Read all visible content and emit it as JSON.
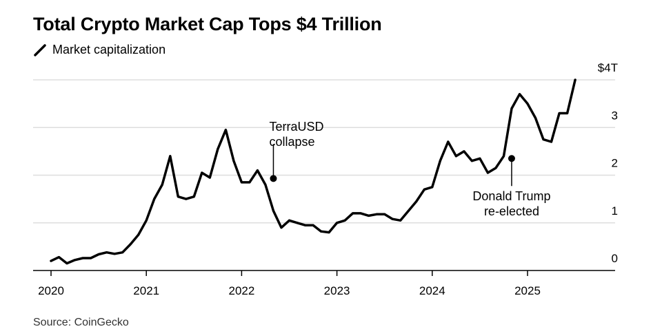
{
  "title": "Total Crypto Market Cap Tops $4 Trillion",
  "legend_label": "Market capitalization",
  "source": "Source: CoinGecko",
  "colors": {
    "line": "#000000",
    "grid": "#dddddd",
    "axis": "#000000"
  },
  "chart_data": {
    "type": "line",
    "title": "Total Crypto Market Cap Tops $4 Trillion",
    "xlabel": "",
    "ylabel": "",
    "y_unit": "trillion USD",
    "ylim": [
      0,
      4
    ],
    "y_ticks": [
      {
        "value": 4,
        "label": "$4T"
      },
      {
        "value": 3,
        "label": "3"
      },
      {
        "value": 2,
        "label": "2"
      },
      {
        "value": 1,
        "label": "1"
      },
      {
        "value": 0,
        "label": "0"
      }
    ],
    "x_ticks": [
      "2020",
      "2021",
      "2022",
      "2023",
      "2024",
      "2025"
    ],
    "grid": true,
    "series": [
      {
        "name": "Market capitalization",
        "x": [
          "2020-01",
          "2020-02",
          "2020-03",
          "2020-04",
          "2020-05",
          "2020-06",
          "2020-07",
          "2020-08",
          "2020-09",
          "2020-10",
          "2020-11",
          "2020-12",
          "2021-01",
          "2021-02",
          "2021-03",
          "2021-04",
          "2021-05",
          "2021-06",
          "2021-07",
          "2021-08",
          "2021-09",
          "2021-10",
          "2021-11",
          "2021-12",
          "2022-01",
          "2022-02",
          "2022-03",
          "2022-04",
          "2022-05",
          "2022-06",
          "2022-07",
          "2022-08",
          "2022-09",
          "2022-10",
          "2022-11",
          "2022-12",
          "2023-01",
          "2023-02",
          "2023-03",
          "2023-04",
          "2023-05",
          "2023-06",
          "2023-07",
          "2023-08",
          "2023-09",
          "2023-10",
          "2023-11",
          "2023-12",
          "2024-01",
          "2024-02",
          "2024-03",
          "2024-04",
          "2024-05",
          "2024-06",
          "2024-07",
          "2024-08",
          "2024-09",
          "2024-10",
          "2024-11",
          "2024-12",
          "2025-01",
          "2025-02",
          "2025-03",
          "2025-04",
          "2025-05",
          "2025-06",
          "2025-07"
        ],
        "values": [
          0.2,
          0.28,
          0.15,
          0.22,
          0.26,
          0.26,
          0.34,
          0.38,
          0.35,
          0.38,
          0.55,
          0.75,
          1.05,
          1.5,
          1.8,
          2.4,
          1.55,
          1.5,
          1.55,
          2.05,
          1.95,
          2.55,
          2.95,
          2.3,
          1.85,
          1.85,
          2.1,
          1.8,
          1.25,
          0.9,
          1.05,
          1.0,
          0.95,
          0.95,
          0.82,
          0.8,
          1.0,
          1.05,
          1.2,
          1.2,
          1.15,
          1.18,
          1.18,
          1.08,
          1.05,
          1.25,
          1.45,
          1.7,
          1.75,
          2.3,
          2.7,
          2.4,
          2.5,
          2.3,
          2.35,
          2.05,
          2.15,
          2.4,
          3.4,
          3.7,
          3.5,
          3.2,
          2.75,
          2.7,
          3.3,
          3.3,
          4.0
        ]
      }
    ],
    "annotations": [
      {
        "x": "2022-05",
        "y": 1.93,
        "text_lines": [
          "TerraUSD",
          "collapse"
        ]
      },
      {
        "x": "2024-11",
        "y": 2.35,
        "text_lines": [
          "Donald Trump",
          "re-elected"
        ]
      }
    ]
  }
}
